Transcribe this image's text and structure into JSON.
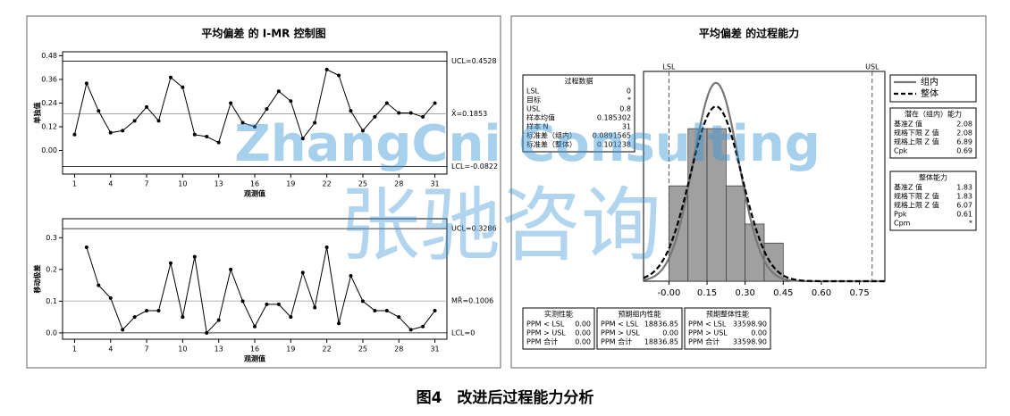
{
  "caption": "图4　改进后过程能力分析",
  "watermark": {
    "latin": "ZhangCni Consulting",
    "chinese": "张驰咨询"
  },
  "chart_data": [
    {
      "type": "line",
      "title": "平均偏差 的 I-MR 控制图",
      "ylabel": "单独值",
      "xlabel": "观测值",
      "x": [
        1,
        2,
        3,
        4,
        5,
        6,
        7,
        8,
        9,
        10,
        11,
        12,
        13,
        14,
        15,
        16,
        17,
        18,
        19,
        20,
        21,
        22,
        23,
        24,
        25,
        26,
        27,
        28,
        29,
        30,
        31
      ],
      "values": [
        0.08,
        0.34,
        0.2,
        0.09,
        0.1,
        0.15,
        0.22,
        0.15,
        0.37,
        0.32,
        0.08,
        0.07,
        0.04,
        0.24,
        0.14,
        0.12,
        0.21,
        0.3,
        0.25,
        0.06,
        0.14,
        0.41,
        0.38,
        0.2,
        0.1,
        0.17,
        0.24,
        0.19,
        0.19,
        0.17,
        0.24
      ],
      "color": "#000000",
      "xlim": [
        0,
        32
      ],
      "xticks": [
        1,
        4,
        7,
        10,
        13,
        16,
        19,
        22,
        25,
        28,
        31
      ],
      "ylim": [
        -0.12,
        0.5
      ],
      "yticks": [
        {
          "value": 0,
          "label": "0.00"
        },
        0.12,
        0.24,
        0.36,
        0.48
      ],
      "limits": [
        {
          "value": 0.4528,
          "label": "UCL=0.4528"
        },
        {
          "value": 0.1853,
          "label": "X̄=0.1853"
        },
        {
          "value": -0.0822,
          "label": "LCL=-0.0822"
        }
      ]
    },
    {
      "type": "line",
      "ylabel": "移动极差",
      "xlabel": "观测值",
      "x": [
        1,
        2,
        3,
        4,
        5,
        6,
        7,
        8,
        9,
        10,
        11,
        12,
        13,
        14,
        15,
        16,
        17,
        18,
        19,
        20,
        21,
        22,
        23,
        24,
        25,
        26,
        27,
        28,
        29,
        30,
        31
      ],
      "values": [
        null,
        0.27,
        0.15,
        0.11,
        0.01,
        0.05,
        0.07,
        0.07,
        0.22,
        0.05,
        0.24,
        0.0,
        0.04,
        0.2,
        0.1,
        0.02,
        0.09,
        0.09,
        0.05,
        0.19,
        0.08,
        0.27,
        0.03,
        0.18,
        0.1,
        0.07,
        0.07,
        0.05,
        0.01,
        0.02,
        0.07
      ],
      "color": "#000000",
      "xlim": [
        0,
        32
      ],
      "xticks": [
        1,
        4,
        7,
        10,
        13,
        16,
        19,
        22,
        25,
        28,
        31
      ],
      "ylim": [
        -0.02,
        0.36
      ],
      "yticks": [
        {
          "value": 0,
          "label": "0.0"
        },
        {
          "value": 0.1,
          "label": "0.1"
        },
        {
          "value": 0.2,
          "label": "0.2"
        },
        {
          "value": 0.3,
          "label": "0.3"
        }
      ],
      "limits": [
        {
          "value": 0.3286,
          "label": "UCL=0.3286"
        },
        {
          "value": 0.1006,
          "label": "MR̄=0.1006"
        },
        {
          "value": 0,
          "label": "LCL=0"
        }
      ]
    },
    {
      "type": "histogram",
      "title": "平均偏差 的过程能力",
      "bins": [
        0,
        0.075,
        0.15,
        0.225,
        0.3,
        0.375,
        0.45
      ],
      "counts": [
        5,
        8,
        8,
        5,
        3,
        2
      ],
      "color": "#a0a0a0",
      "xlim": [
        -0.1,
        0.85
      ],
      "ylim": [
        0,
        11
      ],
      "xticks": [
        {
          "value": 0,
          "label": "-0.00"
        },
        0.15,
        {
          "value": 0.3,
          "label": "0.30"
        },
        0.45,
        {
          "value": 0.6,
          "label": "0.60"
        },
        0.75
      ],
      "lsl": {
        "value": 0,
        "label": "LSL"
      },
      "usl": {
        "value": 0.8,
        "label": "USL"
      },
      "mean": 0.185302,
      "n": 31,
      "series": [
        {
          "name": "组内",
          "color": "#777777",
          "sd": 0.0891565,
          "dash": false
        },
        {
          "name": "整体",
          "color": "#000000",
          "sd": 0.101238,
          "dash": true
        }
      ]
    }
  ],
  "tables": [
    {
      "title": "过程数据",
      "rows": [
        [
          "LSL",
          "0"
        ],
        [
          "目标",
          "*"
        ],
        [
          "USL",
          "0.8"
        ],
        [
          "样本均值",
          "0.185302"
        ],
        [
          "样本 N",
          "31"
        ],
        [
          "标准差（组内）",
          "0.0891565"
        ],
        [
          "标准差（整体）",
          "0.101238"
        ]
      ]
    },
    {
      "title": "潜在（组内）能力",
      "rows": [
        [
          "基准Z 值",
          "2.08"
        ],
        [
          "规格下限 Z 值",
          "2.08"
        ],
        [
          "规格上限 Z 值",
          "6.89"
        ],
        [
          "Cpk",
          "0.69"
        ]
      ]
    },
    {
      "title": "整体能力",
      "rows": [
        [
          "基准Z 值",
          "1.83"
        ],
        [
          "规格下限 Z 值",
          "1.83"
        ],
        [
          "规格上限 Z 值",
          "6.07"
        ],
        [
          "Ppk",
          "0.61"
        ],
        [
          "Cpm",
          "*"
        ]
      ]
    },
    {
      "title": "实测性能",
      "rows": [
        [
          "PPM < LSL",
          "0.00"
        ],
        [
          "PPM > USL",
          "0.00"
        ],
        [
          "PPM 合计",
          "0.00"
        ]
      ]
    },
    {
      "title": "预期组内性能",
      "rows": [
        [
          "PPM < LSL",
          "18836.85"
        ],
        [
          "PPM > USL",
          "0.00"
        ],
        [
          "PPM 合计",
          "18836.85"
        ]
      ]
    },
    {
      "title": "预期整体性能",
      "rows": [
        [
          "PPM < LSL",
          "33598.90"
        ],
        [
          "PPM > USL",
          "0.00"
        ],
        [
          "PPM 合计",
          "33598.90"
        ]
      ]
    }
  ]
}
